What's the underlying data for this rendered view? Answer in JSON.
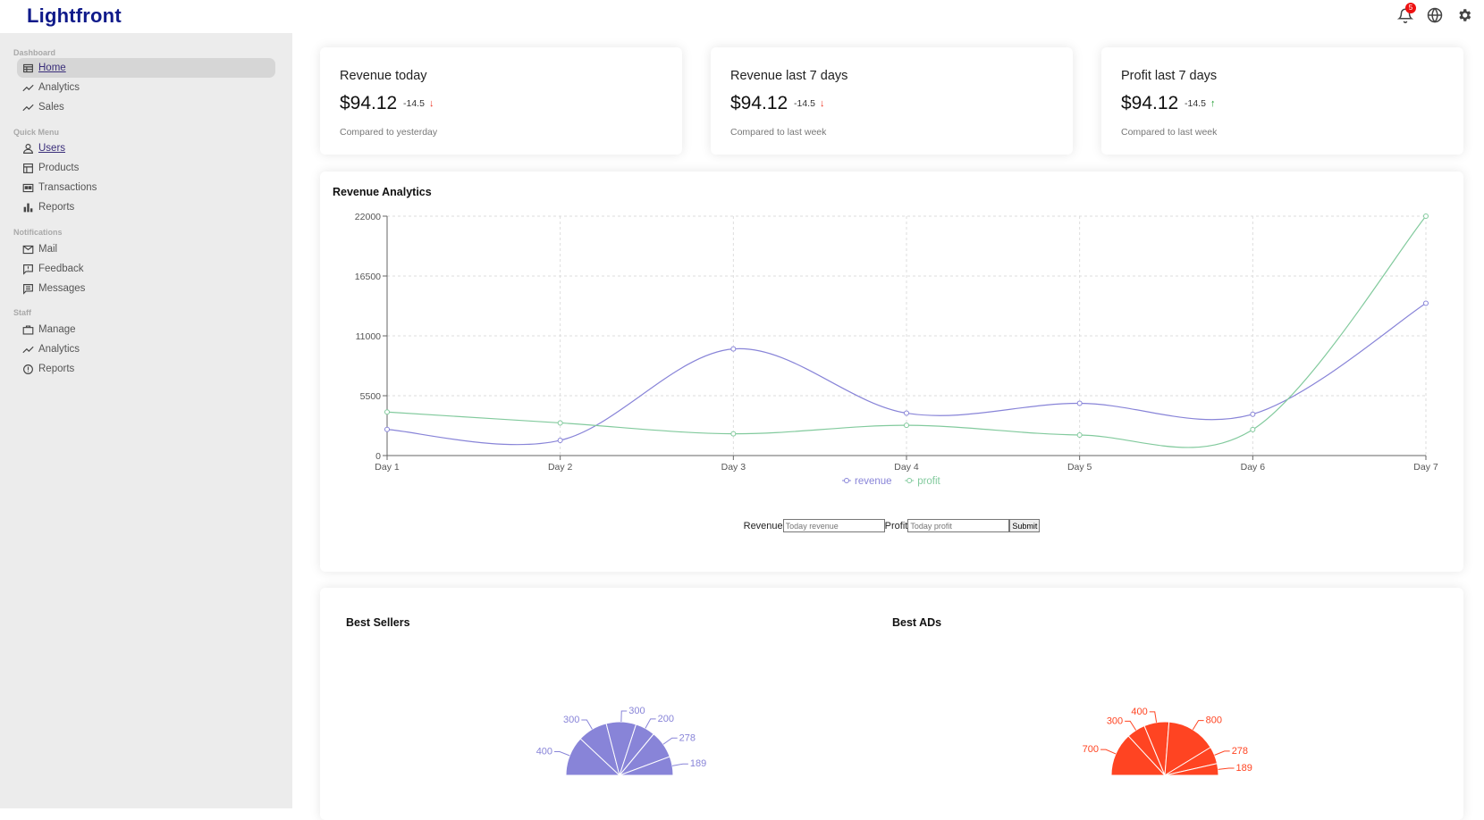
{
  "app": {
    "logo": "Lightfront",
    "notification_count": "5"
  },
  "sidebar": {
    "sections": [
      {
        "title": "Dashboard",
        "items": [
          {
            "label": "Home",
            "icon": "table-icon",
            "active": true,
            "link": true
          },
          {
            "label": "Analytics",
            "icon": "trend-icon"
          },
          {
            "label": "Sales",
            "icon": "trend-icon"
          }
        ]
      },
      {
        "title": "Quick Menu",
        "items": [
          {
            "label": "Users",
            "icon": "user-icon",
            "link": true
          },
          {
            "label": "Products",
            "icon": "store-icon"
          },
          {
            "label": "Transactions",
            "icon": "card-icon"
          },
          {
            "label": "Reports",
            "icon": "bar-chart-icon"
          }
        ]
      },
      {
        "title": "Notifications",
        "items": [
          {
            "label": "Mail",
            "icon": "mail-icon"
          },
          {
            "label": "Feedback",
            "icon": "feedback-icon"
          },
          {
            "label": "Messages",
            "icon": "message-icon"
          }
        ]
      },
      {
        "title": "Staff",
        "items": [
          {
            "label": "Manage",
            "icon": "briefcase-icon"
          },
          {
            "label": "Analytics",
            "icon": "trend-icon"
          },
          {
            "label": "Reports",
            "icon": "alert-circle-icon"
          }
        ]
      }
    ]
  },
  "kpis": [
    {
      "title": "Revenue today",
      "value": "$94.12",
      "delta": "-14.5",
      "direction": "down",
      "sub": "Compared to yesterday"
    },
    {
      "title": "Revenue last 7 days",
      "value": "$94.12",
      "delta": "-14.5",
      "direction": "down",
      "sub": "Compared to last week"
    },
    {
      "title": "Profit last 7 days",
      "value": "$94.12",
      "delta": "-14.5",
      "direction": "up",
      "sub": "Compared to last week"
    }
  ],
  "revenue_chart": {
    "title": "Revenue Analytics",
    "form": {
      "revenue_label": "Revenue",
      "revenue_placeholder": "Today revenue",
      "profit_label": "Profit",
      "profit_placeholder": "Today profit",
      "submit_label": "Submit"
    }
  },
  "best_sellers": {
    "title": "Best Sellers"
  },
  "best_ads": {
    "title": "Best ADs"
  },
  "chart_data": [
    {
      "type": "line",
      "title": "Revenue Analytics",
      "x": [
        "Day 1",
        "Day 2",
        "Day 3",
        "Day 4",
        "Day 5",
        "Day 6",
        "Day 7"
      ],
      "yticks": [
        0,
        5500,
        11000,
        16500,
        22000
      ],
      "ylim": [
        0,
        22000
      ],
      "grid": true,
      "legend": "bottom",
      "series": [
        {
          "name": "revenue",
          "color": "#8884d8",
          "values": [
            2400,
            1400,
            9800,
            3900,
            4800,
            3800,
            14000
          ]
        },
        {
          "name": "profit",
          "color": "#82ca9d",
          "values": [
            4000,
            3000,
            2000,
            2780,
            1890,
            2390,
            22000
          ]
        }
      ]
    },
    {
      "type": "pie",
      "title": "Best Sellers",
      "half": true,
      "color": "#8884d8",
      "values": [
        400,
        300,
        300,
        200,
        278,
        189
      ]
    },
    {
      "type": "pie",
      "title": "Best ADs",
      "half": true,
      "color": "#ff4422",
      "values": [
        700,
        300,
        400,
        800,
        278,
        189
      ]
    }
  ]
}
